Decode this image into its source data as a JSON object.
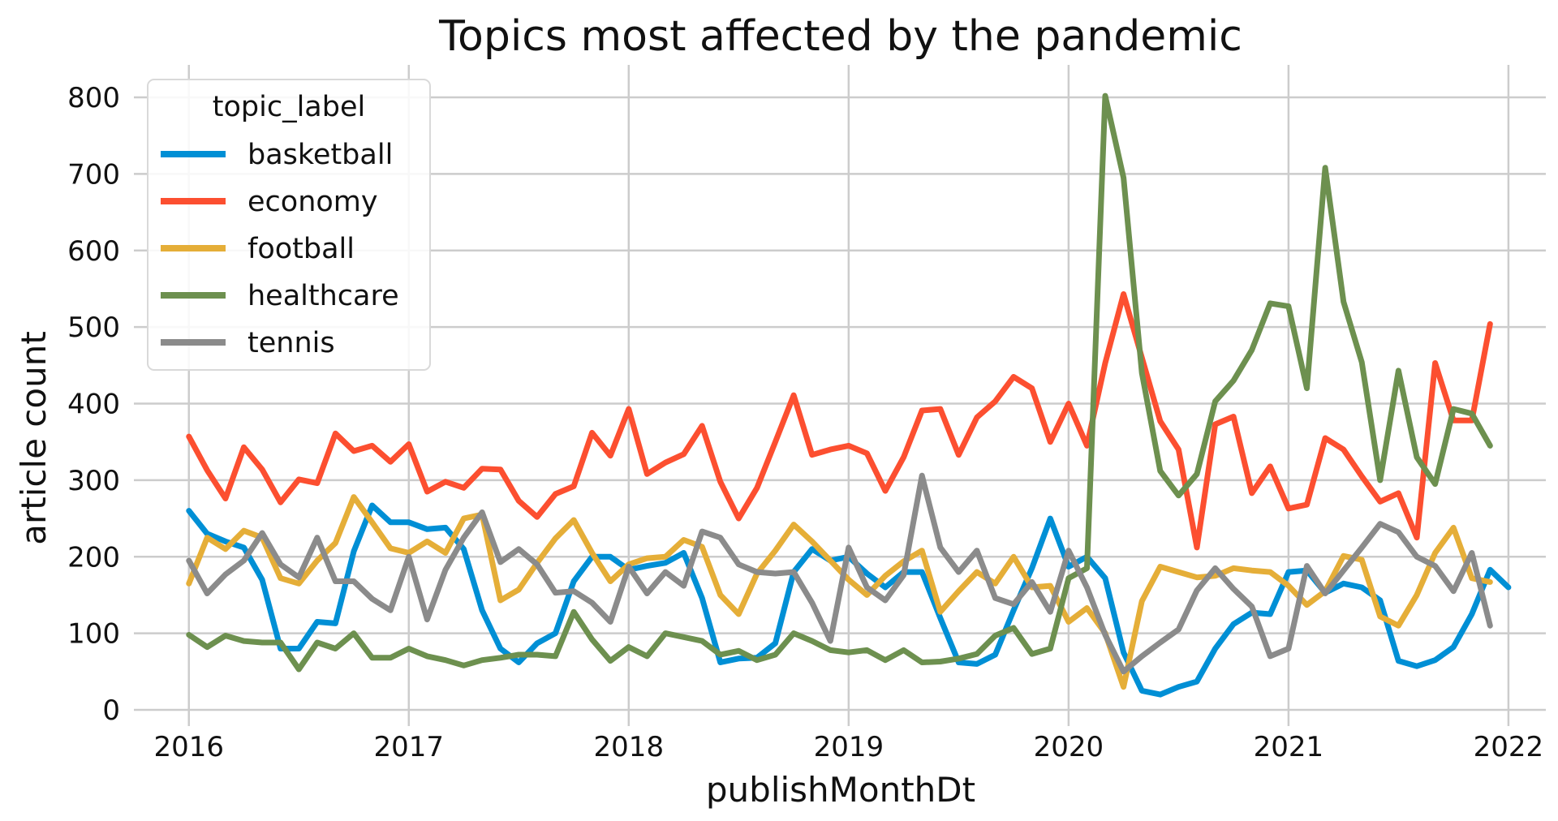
{
  "chart_data": {
    "type": "line",
    "title": "Topics most affected by the pandemic",
    "xlabel": "publishMonthDt",
    "ylabel": "article count",
    "xlim": [
      2015.75,
      2022.17
    ],
    "ylim": [
      0,
      800
    ],
    "x_ticks": [
      "2016",
      "2017",
      "2018",
      "2019",
      "2020",
      "2021",
      "2022"
    ],
    "y_ticks": [
      "0",
      "100",
      "200",
      "300",
      "400",
      "500",
      "600",
      "700",
      "800"
    ],
    "grid": true,
    "legend_placement": "upper-left",
    "legend_title": "topic_label",
    "x_start": "2016-01",
    "x_step": "month",
    "series": [
      {
        "name": "basketball",
        "color": "#008fd5",
        "values": [
          260,
          230,
          220,
          212,
          170,
          80,
          80,
          115,
          113,
          207,
          267,
          245,
          245,
          236,
          238,
          210,
          130,
          80,
          62,
          87,
          100,
          168,
          200,
          200,
          183,
          188,
          192,
          205,
          146,
          62,
          67,
          68,
          87,
          180,
          210,
          195,
          200,
          178,
          160,
          180,
          180,
          120,
          62,
          60,
          72,
          130,
          185,
          250,
          187,
          200,
          172,
          75,
          25,
          20,
          30,
          37,
          80,
          112,
          127,
          125,
          180,
          182,
          153,
          165,
          160,
          143,
          64,
          57,
          65,
          82,
          125,
          183,
          160
        ]
      },
      {
        "name": "economy",
        "color": "#fc4f30",
        "values": [
          357,
          313,
          276,
          343,
          314,
          271,
          301,
          296,
          361,
          338,
          345,
          324,
          347,
          285,
          298,
          290,
          315,
          314,
          273,
          252,
          282,
          292,
          362,
          332,
          393,
          308,
          323,
          334,
          371,
          298,
          250,
          290,
          350,
          411,
          333,
          340,
          345,
          335,
          286,
          330,
          391,
          393,
          333,
          382,
          403,
          435,
          420,
          350,
          400,
          345,
          453,
          543,
          460,
          377,
          340,
          212,
          373,
          383,
          283,
          318,
          263,
          268,
          355,
          340,
          305,
          272,
          283,
          225,
          453,
          378,
          378,
          504
        ]
      },
      {
        "name": "football",
        "color": "#e5ae38",
        "values": [
          165,
          225,
          210,
          234,
          225,
          172,
          165,
          195,
          218,
          278,
          245,
          211,
          205,
          220,
          205,
          250,
          255,
          143,
          157,
          192,
          224,
          248,
          205,
          168,
          190,
          198,
          200,
          222,
          213,
          150,
          125,
          178,
          208,
          242,
          220,
          195,
          170,
          150,
          175,
          194,
          208,
          128,
          155,
          180,
          165,
          200,
          160,
          162,
          115,
          133,
          100,
          30,
          142,
          187,
          180,
          173,
          175,
          185,
          182,
          180,
          162,
          137,
          155,
          201,
          196,
          122,
          110,
          150,
          205,
          238,
          172,
          167
        ]
      },
      {
        "name": "healthcare",
        "color": "#6d904f",
        "values": [
          98,
          82,
          97,
          90,
          88,
          88,
          53,
          88,
          80,
          100,
          68,
          68,
          80,
          70,
          65,
          58,
          65,
          68,
          72,
          72,
          70,
          128,
          92,
          64,
          82,
          70,
          100,
          95,
          90,
          72,
          77,
          65,
          72,
          100,
          90,
          78,
          75,
          78,
          65,
          78,
          62,
          63,
          67,
          73,
          97,
          107,
          73,
          80,
          172,
          185,
          802,
          695,
          440,
          312,
          280,
          308,
          403,
          430,
          470,
          531,
          527,
          420,
          708,
          533,
          454,
          300,
          443,
          330,
          295,
          393,
          387,
          345
        ]
      },
      {
        "name": "tennis",
        "color": "#8b8b8b",
        "values": [
          195,
          152,
          177,
          195,
          231,
          190,
          173,
          225,
          168,
          168,
          145,
          130,
          200,
          118,
          183,
          225,
          258,
          193,
          210,
          190,
          153,
          155,
          140,
          115,
          187,
          152,
          180,
          162,
          233,
          225,
          190,
          180,
          178,
          180,
          140,
          90,
          212,
          160,
          143,
          176,
          306,
          212,
          180,
          208,
          146,
          138,
          167,
          128,
          208,
          160,
          98,
          50,
          70,
          88,
          105,
          156,
          185,
          158,
          135,
          70,
          80,
          188,
          152,
          182,
          212,
          243,
          232,
          200,
          188,
          155,
          205,
          110
        ]
      }
    ]
  }
}
